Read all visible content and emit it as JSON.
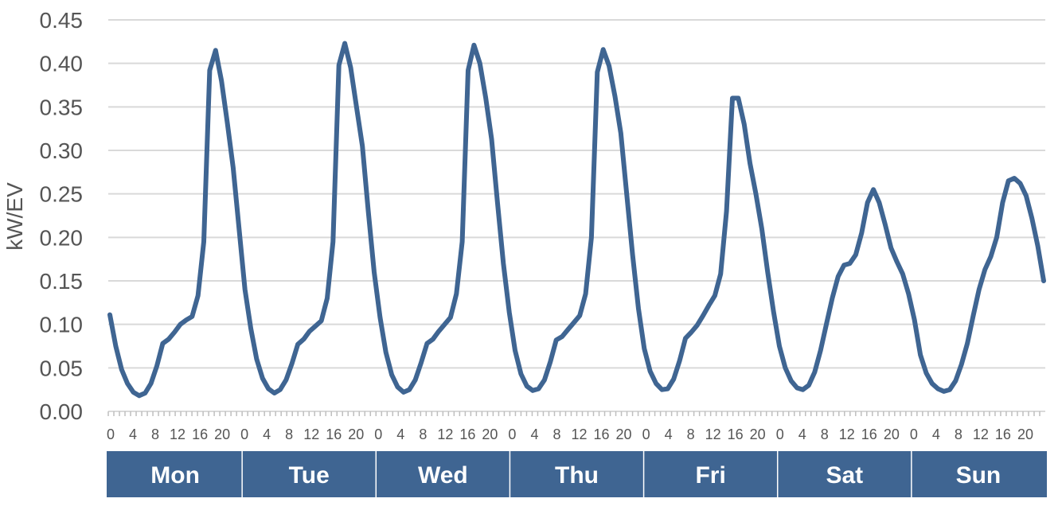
{
  "chart_data": {
    "type": "line",
    "ylabel": "kW/EV",
    "ylim": [
      0,
      0.45
    ],
    "yticks": [
      "0.00",
      "0.05",
      "0.10",
      "0.15",
      "0.20",
      "0.25",
      "0.30",
      "0.35",
      "0.40",
      "0.45"
    ],
    "grid": true,
    "legend": "none",
    "x_hour_tick_labels": [
      "0",
      "4",
      "8",
      "12",
      "16",
      "20"
    ],
    "days": [
      "Mon",
      "Tue",
      "Wed",
      "Thu",
      "Fri",
      "Sat",
      "Sun"
    ],
    "colors": {
      "series": "#3f6592",
      "day_band": "#3f6592",
      "day_band_text": "#ffffff"
    },
    "series": [
      {
        "day_profiles": {
          "weekday_1": [
            0.111,
            0.075,
            0.048,
            0.032,
            0.022,
            0.018,
            0.021,
            0.032,
            0.052,
            0.078,
            0.083,
            0.091,
            0.1,
            0.105,
            0.109,
            0.133,
            0.195,
            0.392,
            0.415,
            0.38,
            0.332,
            0.28,
            0.21,
            0.14,
            0.095
          ],
          "weekday_2": [
            0.06,
            0.038,
            0.026,
            0.021,
            0.025,
            0.036,
            0.055,
            0.077,
            0.083,
            0.092,
            0.098,
            0.104,
            0.13,
            0.195,
            0.398,
            0.423,
            0.395,
            0.35,
            0.305,
            0.23,
            0.16,
            0.108
          ],
          "weekday_3": [
            0.068,
            0.042,
            0.028,
            0.022,
            0.025,
            0.036,
            0.056,
            0.078,
            0.083,
            0.092,
            0.1,
            0.108,
            0.135,
            0.195,
            0.392,
            0.421,
            0.4,
            0.36,
            0.313,
            0.24,
            0.17,
            0.114
          ],
          "weekday_4": [
            0.07,
            0.043,
            0.029,
            0.024,
            0.026,
            0.036,
            0.057,
            0.082,
            0.086,
            0.094,
            0.102,
            0.11,
            0.135,
            0.2,
            0.39,
            0.416,
            0.397,
            0.362,
            0.32,
            0.25,
            0.18,
            0.118
          ],
          "fri": [
            0.072,
            0.046,
            0.032,
            0.025,
            0.026,
            0.037,
            0.058,
            0.084,
            0.091,
            0.099,
            0.11,
            0.122,
            0.133,
            0.158,
            0.23,
            0.36,
            0.36,
            0.33,
            0.285,
            0.25,
            0.21,
            0.16,
            0.115
          ],
          "sat": [
            0.075,
            0.05,
            0.035,
            0.027,
            0.025,
            0.03,
            0.045,
            0.07,
            0.1,
            0.13,
            0.155,
            0.168,
            0.17,
            0.18,
            0.205,
            0.24,
            0.255,
            0.24,
            0.215,
            0.188,
            0.172,
            0.158,
            0.135,
            0.105
          ],
          "sun": [
            0.065,
            0.044,
            0.032,
            0.026,
            0.023,
            0.025,
            0.035,
            0.054,
            0.078,
            0.11,
            0.14,
            0.163,
            0.178,
            0.2,
            0.24,
            0.265,
            0.268,
            0.262,
            0.248,
            0.222,
            0.19,
            0.15
          ]
        }
      }
    ]
  }
}
